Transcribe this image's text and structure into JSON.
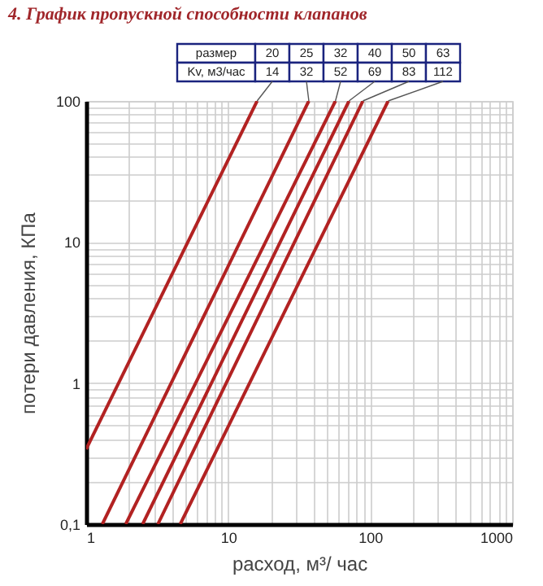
{
  "chart_data": {
    "type": "line",
    "title": "4. График пропускной способности клапанов",
    "xlabel": "расход, м³/ час",
    "ylabel": "потери давления, КПа",
    "log": "xy",
    "grid": true,
    "legend": false,
    "marker": "none",
    "line_style": "solid",
    "xlim": [
      1,
      1000
    ],
    "ylim": [
      0.1,
      100
    ],
    "xticks": [
      1,
      {
        "value": 2,
        "label": null
      },
      {
        "value": 3,
        "label": null
      },
      {
        "value": 4,
        "label": null
      },
      {
        "value": 5,
        "label": null
      },
      {
        "value": 6,
        "label": null
      },
      {
        "value": 7,
        "label": null
      },
      {
        "value": 8,
        "label": null
      },
      {
        "value": 9,
        "label": null
      },
      10,
      {
        "value": 20,
        "label": null
      },
      {
        "value": 30,
        "label": null
      },
      {
        "value": 40,
        "label": null
      },
      {
        "value": 50,
        "label": null
      },
      {
        "value": 60,
        "label": null
      },
      {
        "value": 70,
        "label": null
      },
      {
        "value": 80,
        "label": null
      },
      {
        "value": 90,
        "label": null
      },
      100,
      {
        "value": 200,
        "label": null
      },
      {
        "value": 300,
        "label": null
      },
      {
        "value": 400,
        "label": null
      },
      {
        "value": 500,
        "label": null
      },
      {
        "value": 600,
        "label": null
      },
      {
        "value": 700,
        "label": null
      },
      {
        "value": 800,
        "label": null
      },
      {
        "value": 900,
        "label": null
      },
      1000
    ],
    "yticks": [
      {
        "value": 0.1,
        "label": "0,1"
      },
      {
        "value": 0.2,
        "label": null
      },
      {
        "value": 0.3,
        "label": null
      },
      {
        "value": 0.4,
        "label": null
      },
      {
        "value": 0.5,
        "label": null
      },
      {
        "value": 0.6,
        "label": null
      },
      {
        "value": 0.7,
        "label": null
      },
      {
        "value": 0.8,
        "label": null
      },
      {
        "value": 0.9,
        "label": null
      },
      1,
      {
        "value": 2,
        "label": null
      },
      {
        "value": 3,
        "label": null
      },
      {
        "value": 4,
        "label": null
      },
      {
        "value": 5,
        "label": null
      },
      {
        "value": 6,
        "label": null
      },
      {
        "value": 7,
        "label": null
      },
      {
        "value": 8,
        "label": null
      },
      {
        "value": 9,
        "label": null
      },
      10,
      {
        "value": 20,
        "label": null
      },
      {
        "value": 30,
        "label": null
      },
      {
        "value": 40,
        "label": null
      },
      {
        "value": 50,
        "label": null
      },
      {
        "value": 60,
        "label": null
      },
      {
        "value": 70,
        "label": null
      },
      {
        "value": 80,
        "label": null
      },
      {
        "value": 90,
        "label": null
      },
      100
    ],
    "annotations": [
      "размер",
      "Kv, м3/час",
      "14",
      "32",
      "52",
      "69",
      "83",
      "112"
    ],
    "series": [
      {
        "name": "20",
        "color": "#b22222",
        "x": [
          1,
          16
        ],
        "values": [
          0.34,
          100
        ]
      },
      {
        "name": "25",
        "color": "#b22222",
        "x": [
          1.3,
          37
        ],
        "values": [
          0.1,
          100
        ]
      },
      {
        "name": "32",
        "color": "#b22222",
        "x": [
          1.9,
          57
        ],
        "values": [
          0.1,
          100
        ]
      },
      {
        "name": "40",
        "color": "#b22222",
        "x": [
          2.5,
          71
        ],
        "values": [
          0.1,
          100
        ]
      },
      {
        "name": "50",
        "color": "#b22222",
        "x": [
          3.2,
          89
        ],
        "values": [
          0.1,
          100
        ]
      },
      {
        "name": "63",
        "color": "#b22222",
        "x": [
          4.6,
          134
        ],
        "values": [
          0.1,
          100
        ]
      }
    ]
  }
}
